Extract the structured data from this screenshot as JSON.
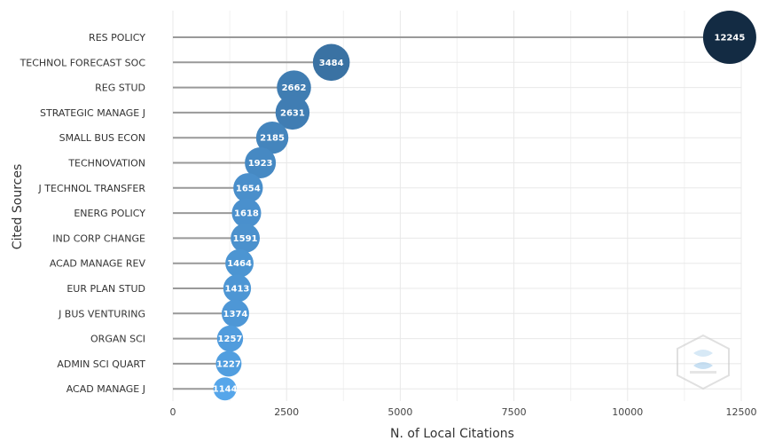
{
  "chart_data": {
    "type": "lollipop",
    "title": "",
    "xlabel": "N. of Local Citations",
    "ylabel": "Cited Sources",
    "xlim": [
      0,
      12500
    ],
    "xticks": [
      0,
      2500,
      5000,
      7500,
      10000,
      12500
    ],
    "grid": true,
    "legend": "none",
    "categories": [
      "RES POLICY",
      "TECHNOL FORECAST SOC",
      "REG STUD",
      "STRATEGIC MANAGE J",
      "SMALL BUS ECON",
      "TECHNOVATION",
      "J TECHNOL TRANSFER",
      "ENERG POLICY",
      "IND CORP CHANGE",
      "ACAD MANAGE REV",
      "EUR PLAN STUD",
      "J BUS VENTURING",
      "ORGAN SCI",
      "ADMIN SCI QUART",
      "ACAD MANAGE J"
    ],
    "values": [
      12245,
      3484,
      2662,
      2631,
      2185,
      1923,
      1654,
      1618,
      1591,
      1464,
      1413,
      1374,
      1257,
      1227,
      1144
    ],
    "value_labels": [
      "12245",
      "3484",
      "2662",
      "2631",
      "2185",
      "1923",
      "1654",
      "1618",
      "1591",
      "1464",
      "1413",
      "1374",
      "1257",
      "1227",
      "1144"
    ],
    "colors": {
      "low": "#56a6ea",
      "high": "#132b43",
      "stem": "#999999",
      "grid": "#e8e8e8"
    }
  },
  "watermark": {
    "icon": "bibliometrix-logo-icon"
  }
}
